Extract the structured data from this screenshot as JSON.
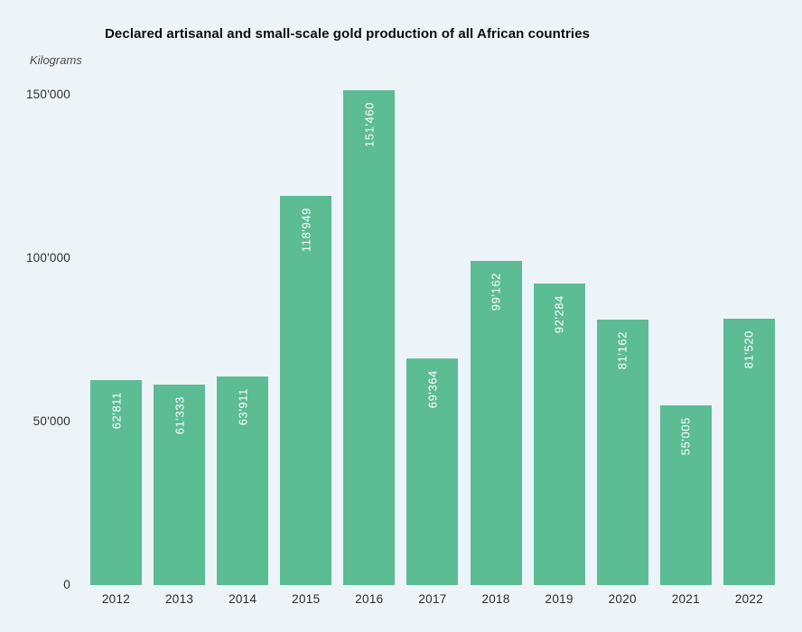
{
  "page": {
    "background": "#edf4f7"
  },
  "header": {
    "title": "Declared artisanal and small-scale gold production of all African countries",
    "unit_label": "Kilograms"
  },
  "chart_data": {
    "type": "bar",
    "title": "Declared artisanal and small-scale gold production of all African countries",
    "xlabel": "",
    "ylabel": "Kilograms",
    "categories": [
      "2012",
      "2013",
      "2014",
      "2015",
      "2016",
      "2017",
      "2018",
      "2019",
      "2020",
      "2021",
      "2022"
    ],
    "values": [
      62811,
      61333,
      63911,
      118949,
      151460,
      69364,
      99162,
      92284,
      81162,
      55005,
      81520
    ],
    "bar_labels": [
      "62'811",
      "61'333",
      "63'911",
      "118'949",
      "151'460",
      "69'364",
      "99'162",
      "92'284",
      "81'162",
      "55'005",
      "81'520"
    ],
    "ylim": [
      0,
      150000
    ],
    "yticks": [
      {
        "value": 0,
        "label": "0"
      },
      {
        "value": 50000,
        "label": "50'000"
      },
      {
        "value": 100000,
        "label": "100'000"
      },
      {
        "value": 150000,
        "label": "150'000"
      }
    ],
    "grid": false,
    "legend": "none",
    "bar_color": "#5cbc94",
    "bar_label_color": "#ffffff",
    "background": "#edf4f7",
    "text_color": "#2f2f2f"
  }
}
